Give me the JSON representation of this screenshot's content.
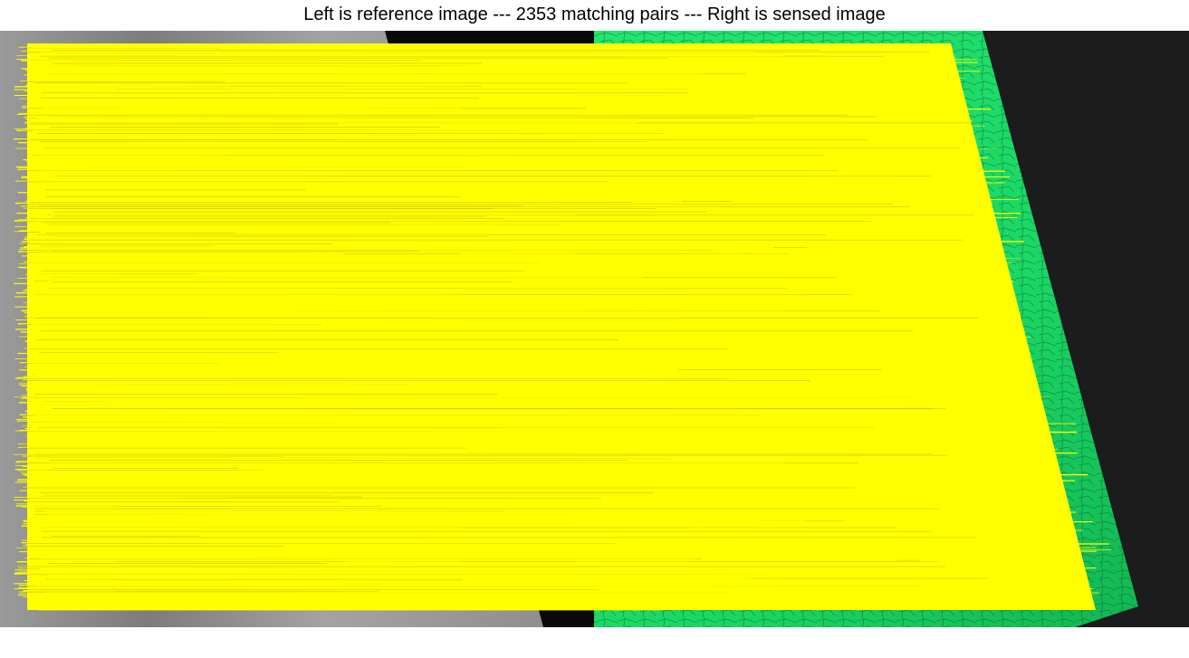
{
  "figure": {
    "title": "Left is reference image --- 2353 matching pairs --- Right is sensed image",
    "match_count": 2353
  },
  "colors": {
    "figure_background": "#ffffff",
    "reference_image_tone": "#8a8a8a",
    "reference_dark_area": "#0a0a0a",
    "sensed_image_tone": "#1fe36a",
    "sensed_background": "#1c1c1c",
    "match_line": "#ffff00"
  },
  "panels": {
    "left": "reference image",
    "right": "sensed image"
  },
  "icons": {
    "lines": "match-lines-icon"
  }
}
